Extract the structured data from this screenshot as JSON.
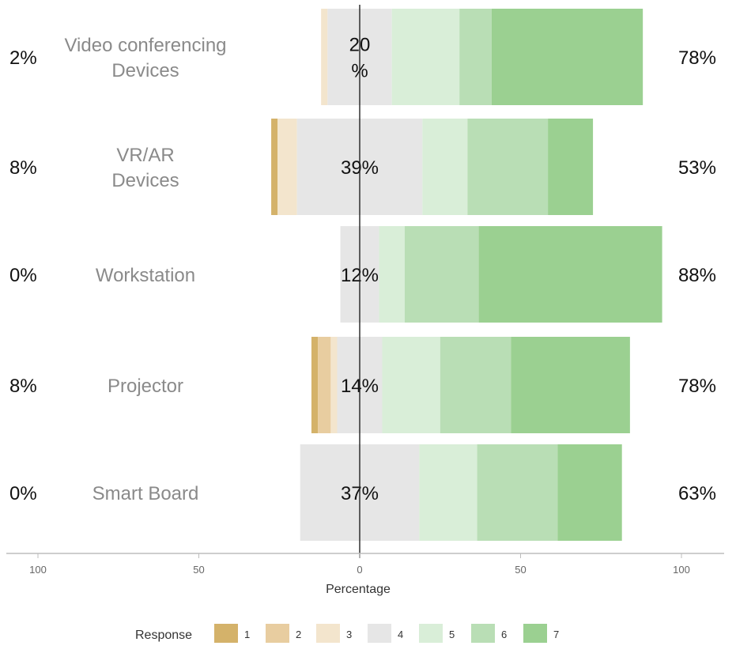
{
  "chart_data": {
    "type": "bar",
    "orientation": "horizontal-diverging",
    "xlabel": "Percentage",
    "xlim": [
      -100,
      100
    ],
    "xticks": [
      {
        "value": -100,
        "label": "100"
      },
      {
        "value": -50,
        "label": "50"
      },
      {
        "value": 0,
        "label": "0"
      },
      {
        "value": 50,
        "label": "50"
      },
      {
        "value": 100,
        "label": "100"
      }
    ],
    "legend": {
      "title": "Response",
      "position": "bottom",
      "levels": [
        "1",
        "2",
        "3",
        "4",
        "5",
        "6",
        "7"
      ],
      "colors": [
        "#d4b26a",
        "#e8cda0",
        "#f3e5cd",
        "#e6e6e6",
        "#d9eed8",
        "#b9deb5",
        "#9bd091"
      ]
    },
    "categories": [
      {
        "label_lines": [
          "Video conferencing",
          "Devices"
        ],
        "low_pct": "2%",
        "neutral_pct_lines": [
          "20",
          "%"
        ],
        "high_pct": "78%",
        "values": [
          0,
          0,
          2,
          20,
          21,
          10,
          47
        ]
      },
      {
        "label_lines": [
          "VR/AR",
          "Devices"
        ],
        "low_pct": "8%",
        "neutral_pct_lines": [
          "39%"
        ],
        "high_pct": "53%",
        "values": [
          2,
          0,
          6,
          39,
          14,
          25,
          14
        ]
      },
      {
        "label_lines": [
          "Workstation"
        ],
        "low_pct": "0%",
        "neutral_pct_lines": [
          "12%"
        ],
        "high_pct": "88%",
        "values": [
          0,
          0,
          0,
          12,
          8,
          23,
          57
        ]
      },
      {
        "label_lines": [
          "Projector"
        ],
        "low_pct": "8%",
        "neutral_pct_lines": [
          "14%"
        ],
        "high_pct": "78%",
        "values": [
          2,
          4,
          2,
          14,
          18,
          22,
          37
        ]
      },
      {
        "label_lines": [
          "Smart Board"
        ],
        "low_pct": "0%",
        "neutral_pct_lines": [
          "37%"
        ],
        "high_pct": "63%",
        "values": [
          0,
          0,
          0,
          37,
          18,
          25,
          20
        ]
      }
    ]
  }
}
